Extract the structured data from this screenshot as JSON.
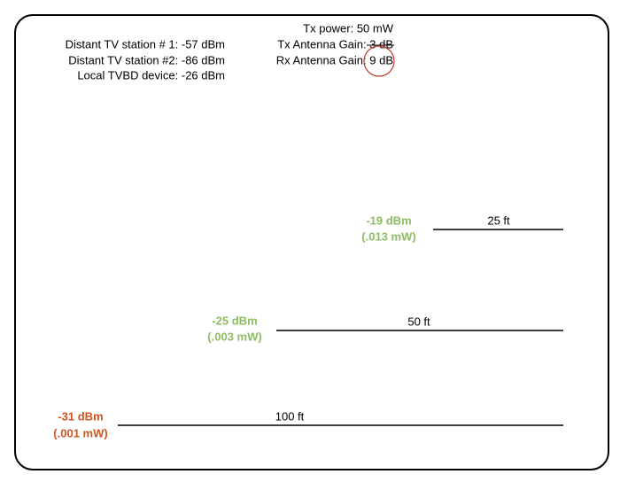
{
  "station_levels": [
    "Distant TV station # 1: -57 dBm",
    "Distant TV station #2: -86 dBm",
    "Local TVBD device: -26 dBm"
  ],
  "tx_settings": [
    "Tx power: 50 mW",
    "Tx Antenna Gain: 3 dB",
    "Rx Antenna Gain: 9 dB"
  ],
  "distances": [
    {
      "power": "-19 dBm",
      "milliwatts": "(.013 mW)",
      "distance": "25 ft"
    },
    {
      "power": "-25 dBm",
      "milliwatts": "(.003 mW)",
      "distance": "50 ft"
    },
    {
      "power": "-31 dBm",
      "milliwatts": "(.001 mW)",
      "distance": "100 ft"
    }
  ]
}
